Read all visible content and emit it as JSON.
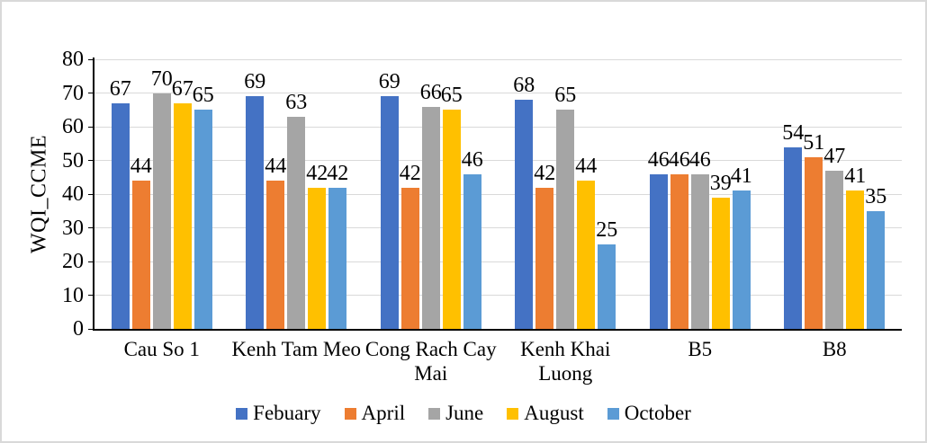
{
  "chart_data": {
    "type": "bar",
    "title": "",
    "xlabel": "",
    "ylabel": "WQI_CCME",
    "categories": [
      "Cau So 1",
      "Kenh Tam Meo",
      "Cong Rach Cay Mai",
      "Kenh Khai Luong",
      "B5",
      "B8"
    ],
    "series": [
      {
        "name": "Febuary",
        "color": "#4472C4",
        "values": [
          67,
          69,
          69,
          68,
          46,
          54
        ]
      },
      {
        "name": "April",
        "color": "#ED7D31",
        "values": [
          44,
          44,
          42,
          42,
          46,
          51
        ]
      },
      {
        "name": "June",
        "color": "#A5A5A5",
        "values": [
          70,
          63,
          66,
          65,
          46,
          47
        ]
      },
      {
        "name": "August",
        "color": "#FFC000",
        "values": [
          67,
          42,
          65,
          44,
          39,
          41
        ]
      },
      {
        "name": "October",
        "color": "#5B9BD5",
        "values": [
          65,
          42,
          46,
          25,
          41,
          35
        ]
      }
    ],
    "ylim": [
      0,
      80
    ],
    "yticks": [
      0,
      10,
      20,
      30,
      40,
      50,
      60,
      70,
      80
    ],
    "grid": true,
    "data_labels": true,
    "legend_position": "bottom",
    "gridline_color": "#D9D9D9",
    "axis_color": "#000000",
    "text_color": "#000000"
  }
}
